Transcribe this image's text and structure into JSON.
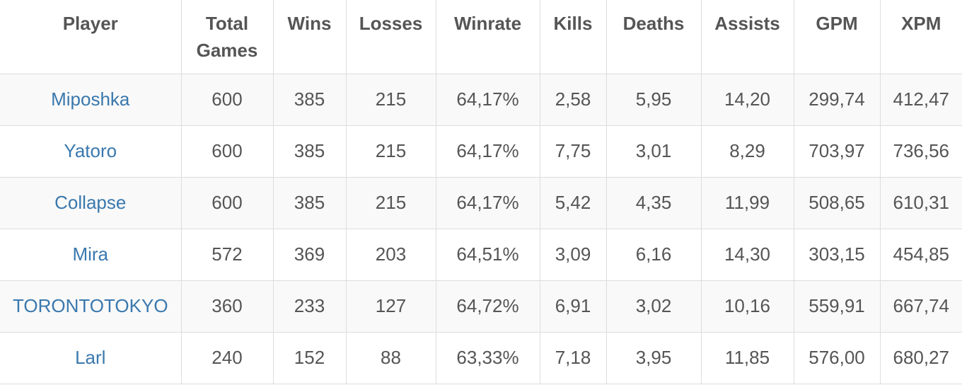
{
  "table": {
    "columns": [
      "Player",
      "Total Games",
      "Wins",
      "Losses",
      "Winrate",
      "Kills",
      "Deaths",
      "Assists",
      "GPM",
      "XPM"
    ],
    "rows": [
      [
        "Miposhka",
        "600",
        "385",
        "215",
        "64,17%",
        "2,58",
        "5,95",
        "14,20",
        "299,74",
        "412,47"
      ],
      [
        "Yatoro",
        "600",
        "385",
        "215",
        "64,17%",
        "7,75",
        "3,01",
        "8,29",
        "703,97",
        "736,56"
      ],
      [
        "Collapse",
        "600",
        "385",
        "215",
        "64,17%",
        "5,42",
        "4,35",
        "11,99",
        "508,65",
        "610,31"
      ],
      [
        "Mira",
        "572",
        "369",
        "203",
        "64,51%",
        "3,09",
        "6,16",
        "14,30",
        "303,15",
        "454,85"
      ],
      [
        "TORONTOTOKYO",
        "360",
        "233",
        "127",
        "64,72%",
        "6,91",
        "3,02",
        "10,16",
        "559,91",
        "667,74"
      ],
      [
        "Larl",
        "240",
        "152",
        "88",
        "63,33%",
        "7,18",
        "3,95",
        "11,85",
        "576,00",
        "680,27"
      ]
    ]
  }
}
